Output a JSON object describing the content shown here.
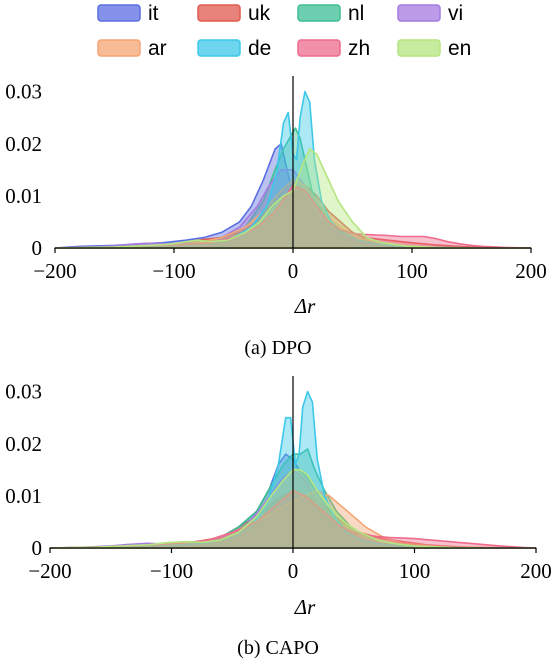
{
  "legend": [
    {
      "name": "it",
      "color": "#5b6ee1"
    },
    {
      "name": "uk",
      "color": "#e05a4f"
    },
    {
      "name": "nl",
      "color": "#3dbf95"
    },
    {
      "name": "vi",
      "color": "#a57be0"
    },
    {
      "name": "ar",
      "color": "#f4a572"
    },
    {
      "name": "de",
      "color": "#3cc8e8"
    },
    {
      "name": "zh",
      "color": "#ee6b8c"
    },
    {
      "name": "en",
      "color": "#b4e680"
    }
  ],
  "chart_data": [
    {
      "type": "area",
      "caption": "(a) DPO",
      "xlabel": "Δr",
      "ylabel": "",
      "xlim": [
        -200,
        200
      ],
      "ylim": [
        0,
        0.033
      ],
      "xticks": [
        "−200",
        "−100",
        "0",
        "100",
        "200"
      ],
      "yticks": [
        "0",
        "0.01",
        "0.02",
        "0.03"
      ],
      "grid": false,
      "legend_placement": "top",
      "series": [
        {
          "name": "it",
          "x": [
            -200,
            -180,
            -150,
            -130,
            -110,
            -90,
            -75,
            -60,
            -45,
            -35,
            -25,
            -15,
            -10,
            -6,
            -2,
            2,
            6,
            12,
            20,
            30,
            40,
            55,
            70,
            90,
            110,
            130,
            150,
            175,
            200
          ],
          "y": [
            0,
            0.0003,
            0.0005,
            0.0008,
            0.001,
            0.0015,
            0.002,
            0.003,
            0.005,
            0.008,
            0.013,
            0.019,
            0.02,
            0.016,
            0.012,
            0.01,
            0.011,
            0.009,
            0.006,
            0.004,
            0.002,
            0.001,
            0.0006,
            0.0003,
            0.0001,
            0,
            0,
            0,
            0
          ]
        },
        {
          "name": "uk",
          "x": [
            -200,
            -150,
            -120,
            -100,
            -80,
            -60,
            -45,
            -30,
            -20,
            -10,
            0,
            10,
            20,
            30,
            40,
            50,
            60,
            80,
            100,
            120,
            140,
            160,
            180,
            200
          ],
          "y": [
            0,
            0.0002,
            0.0005,
            0.0008,
            0.0015,
            0.002,
            0.003,
            0.005,
            0.008,
            0.011,
            0.013,
            0.012,
            0.01,
            0.007,
            0.005,
            0.003,
            0.002,
            0.0015,
            0.001,
            0.0006,
            0.0003,
            0.0001,
            0,
            0
          ]
        },
        {
          "name": "nl",
          "x": [
            -200,
            -150,
            -100,
            -80,
            -60,
            -40,
            -25,
            -15,
            -8,
            -3,
            2,
            6,
            10,
            16,
            22,
            30,
            40,
            55,
            70,
            90,
            120,
            160,
            200
          ],
          "y": [
            0,
            0.0001,
            0.0005,
            0.001,
            0.002,
            0.004,
            0.009,
            0.015,
            0.019,
            0.021,
            0.023,
            0.021,
            0.017,
            0.011,
            0.008,
            0.005,
            0.003,
            0.0015,
            0.0008,
            0.0003,
            0.0001,
            0,
            0
          ]
        },
        {
          "name": "vi",
          "x": [
            -200,
            -170,
            -150,
            -130,
            -120,
            -110,
            -100,
            -80,
            -60,
            -45,
            -30,
            -20,
            -10,
            0,
            10,
            20,
            30,
            45,
            60,
            80,
            100,
            130,
            160,
            200
          ],
          "y": [
            0,
            0.0002,
            0.0004,
            0.0008,
            0.0009,
            0.0008,
            0.0007,
            0.001,
            0.002,
            0.004,
            0.008,
            0.012,
            0.015,
            0.015,
            0.012,
            0.008,
            0.004,
            0.002,
            0.001,
            0.0004,
            0.0002,
            0.0001,
            0,
            0
          ]
        },
        {
          "name": "ar",
          "x": [
            -200,
            -150,
            -100,
            -80,
            -60,
            -40,
            -25,
            -10,
            0,
            10,
            20,
            30,
            40,
            55,
            70,
            90,
            110,
            130,
            160,
            200
          ],
          "y": [
            0,
            0.0001,
            0.0004,
            0.001,
            0.002,
            0.004,
            0.007,
            0.011,
            0.013,
            0.012,
            0.009,
            0.006,
            0.004,
            0.002,
            0.001,
            0.0005,
            0.0002,
            0.0001,
            0,
            0
          ]
        },
        {
          "name": "de",
          "x": [
            -200,
            -150,
            -100,
            -70,
            -50,
            -35,
            -22,
            -14,
            -8,
            -4,
            0,
            3,
            6,
            10,
            14,
            18,
            24,
            32,
            42,
            55,
            70,
            90,
            120,
            160,
            200
          ],
          "y": [
            0,
            0.0001,
            0.0005,
            0.001,
            0.002,
            0.004,
            0.008,
            0.014,
            0.024,
            0.026,
            0.018,
            0.017,
            0.025,
            0.03,
            0.028,
            0.017,
            0.009,
            0.005,
            0.003,
            0.0015,
            0.0008,
            0.0003,
            0.0001,
            0,
            0
          ]
        },
        {
          "name": "zh",
          "x": [
            -200,
            -150,
            -100,
            -70,
            -50,
            -30,
            -15,
            0,
            10,
            20,
            30,
            40,
            50,
            60,
            70,
            80,
            90,
            100,
            110,
            120,
            130,
            140,
            150,
            160,
            180,
            200
          ],
          "y": [
            0,
            0.0002,
            0.0006,
            0.001,
            0.002,
            0.004,
            0.007,
            0.012,
            0.011,
            0.008,
            0.005,
            0.0035,
            0.0028,
            0.0026,
            0.0025,
            0.0024,
            0.0022,
            0.0022,
            0.0022,
            0.0018,
            0.0012,
            0.0008,
            0.0005,
            0.0003,
            0.0001,
            0
          ]
        },
        {
          "name": "en",
          "x": [
            -200,
            -150,
            -120,
            -100,
            -90,
            -80,
            -70,
            -55,
            -40,
            -28,
            -18,
            -8,
            0,
            8,
            14,
            20,
            28,
            38,
            50,
            62,
            75,
            95,
            120,
            160,
            200
          ],
          "y": [
            0,
            0.0002,
            0.0005,
            0.0008,
            0.0012,
            0.0015,
            0.0012,
            0.0015,
            0.003,
            0.005,
            0.008,
            0.01,
            0.011,
            0.016,
            0.019,
            0.018,
            0.014,
            0.009,
            0.005,
            0.002,
            0.001,
            0.0004,
            0.0001,
            0,
            0
          ]
        }
      ]
    },
    {
      "type": "area",
      "caption": "(b) CAPO",
      "xlabel": "Δr",
      "ylabel": "",
      "xlim": [
        -200,
        200
      ],
      "ylim": [
        0,
        0.033
      ],
      "xticks": [
        "−200",
        "−100",
        "0",
        "100",
        "200"
      ],
      "yticks": [
        "0",
        "0.01",
        "0.02",
        "0.03"
      ],
      "grid": false,
      "legend_placement": "top",
      "series": [
        {
          "name": "it",
          "x": [
            -200,
            -150,
            -120,
            -100,
            -80,
            -60,
            -45,
            -30,
            -20,
            -12,
            -6,
            0,
            5,
            10,
            16,
            24,
            34,
            46,
            60,
            80,
            100,
            130,
            160,
            200
          ],
          "y": [
            0,
            0.0002,
            0.0005,
            0.0008,
            0.001,
            0.002,
            0.004,
            0.007,
            0.011,
            0.016,
            0.018,
            0.017,
            0.015,
            0.014,
            0.012,
            0.009,
            0.006,
            0.003,
            0.0015,
            0.0006,
            0.0002,
            0.0001,
            0,
            0
          ]
        },
        {
          "name": "uk",
          "x": [
            -200,
            -150,
            -120,
            -100,
            -80,
            -60,
            -45,
            -30,
            -15,
            0,
            10,
            20,
            30,
            40,
            55,
            70,
            90,
            110,
            130,
            150,
            175,
            200
          ],
          "y": [
            0,
            0.0002,
            0.0005,
            0.0008,
            0.0012,
            0.002,
            0.004,
            0.006,
            0.009,
            0.011,
            0.01,
            0.009,
            0.007,
            0.005,
            0.003,
            0.002,
            0.0012,
            0.0006,
            0.0003,
            0.0001,
            0,
            0
          ]
        },
        {
          "name": "nl",
          "x": [
            -200,
            -150,
            -120,
            -100,
            -80,
            -60,
            -45,
            -30,
            -18,
            -8,
            0,
            6,
            12,
            18,
            26,
            36,
            48,
            62,
            80,
            100,
            130,
            160,
            200
          ],
          "y": [
            0,
            0.0002,
            0.0005,
            0.0008,
            0.001,
            0.002,
            0.004,
            0.007,
            0.012,
            0.016,
            0.018,
            0.018,
            0.019,
            0.015,
            0.011,
            0.007,
            0.004,
            0.002,
            0.001,
            0.0004,
            0.0001,
            0,
            0
          ]
        },
        {
          "name": "vi",
          "x": [
            -200,
            -170,
            -150,
            -135,
            -120,
            -110,
            -95,
            -80,
            -60,
            -40,
            -25,
            -10,
            0,
            10,
            20,
            30,
            45,
            60,
            80,
            100,
            130,
            160,
            200
          ],
          "y": [
            0,
            0.0002,
            0.0004,
            0.0007,
            0.0009,
            0.0008,
            0.0007,
            0.001,
            0.002,
            0.004,
            0.008,
            0.013,
            0.015,
            0.013,
            0.009,
            0.006,
            0.003,
            0.0015,
            0.0006,
            0.0002,
            0.0001,
            0,
            0
          ]
        },
        {
          "name": "ar",
          "x": [
            -200,
            -150,
            -110,
            -90,
            -70,
            -50,
            -30,
            -15,
            0,
            10,
            20,
            30,
            40,
            50,
            60,
            75,
            90,
            110,
            130,
            160,
            200
          ],
          "y": [
            0,
            0.0002,
            0.0005,
            0.0008,
            0.0015,
            0.003,
            0.005,
            0.007,
            0.009,
            0.01,
            0.011,
            0.01,
            0.008,
            0.006,
            0.004,
            0.002,
            0.001,
            0.0005,
            0.0002,
            0.0001,
            0
          ]
        },
        {
          "name": "de",
          "x": [
            -200,
            -150,
            -100,
            -70,
            -50,
            -35,
            -22,
            -12,
            -6,
            -2,
            2,
            5,
            8,
            12,
            16,
            20,
            26,
            34,
            44,
            56,
            70,
            90,
            120,
            160,
            200
          ],
          "y": [
            0,
            0.0001,
            0.0005,
            0.001,
            0.002,
            0.004,
            0.008,
            0.016,
            0.025,
            0.025,
            0.016,
            0.018,
            0.027,
            0.03,
            0.028,
            0.017,
            0.01,
            0.006,
            0.003,
            0.0015,
            0.0008,
            0.0003,
            0.0001,
            0,
            0
          ]
        },
        {
          "name": "zh",
          "x": [
            -200,
            -160,
            -120,
            -90,
            -70,
            -50,
            -30,
            -15,
            0,
            10,
            20,
            30,
            40,
            50,
            60,
            70,
            80,
            90,
            100,
            110,
            120,
            135,
            150,
            170,
            190,
            200
          ],
          "y": [
            0,
            0.0002,
            0.0005,
            0.001,
            0.0015,
            0.003,
            0.005,
            0.008,
            0.011,
            0.01,
            0.008,
            0.006,
            0.004,
            0.003,
            0.0025,
            0.0022,
            0.002,
            0.0019,
            0.0018,
            0.0016,
            0.0014,
            0.0011,
            0.0008,
            0.0004,
            0.0001,
            0
          ]
        },
        {
          "name": "en",
          "x": [
            -200,
            -160,
            -140,
            -120,
            -105,
            -90,
            -75,
            -60,
            -45,
            -30,
            -18,
            -8,
            0,
            6,
            12,
            20,
            30,
            42,
            55,
            70,
            85,
            100,
            130,
            160,
            200
          ],
          "y": [
            0,
            0.0002,
            0.0004,
            0.0006,
            0.001,
            0.0012,
            0.0011,
            0.0015,
            0.003,
            0.006,
            0.01,
            0.013,
            0.015,
            0.015,
            0.014,
            0.011,
            0.008,
            0.005,
            0.003,
            0.0015,
            0.0008,
            0.0004,
            0.0001,
            0,
            0
          ]
        }
      ]
    }
  ]
}
